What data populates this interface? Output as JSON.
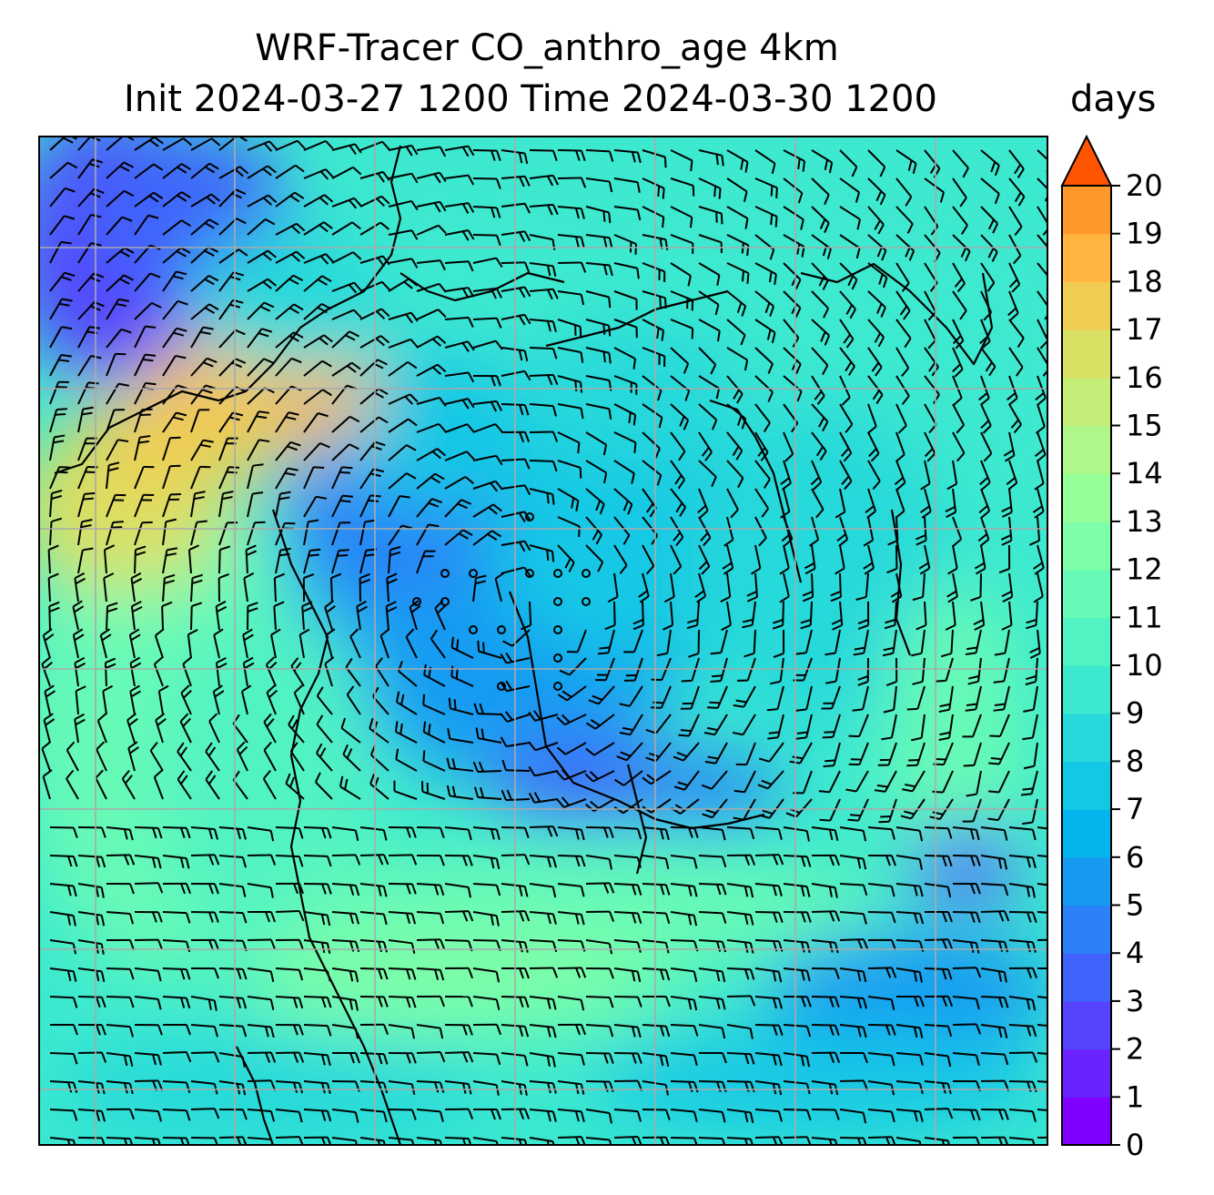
{
  "figure": {
    "title_line1": "WRF-Tracer CO_anthro_age 4km",
    "title_line2": "Init 2024-03-27 1200 Time 2024-03-30 1200",
    "units": "days"
  },
  "colorbar": {
    "ticks": [
      "0",
      "1",
      "2",
      "3",
      "4",
      "5",
      "6",
      "7",
      "8",
      "9",
      "10",
      "11",
      "12",
      "13",
      "14",
      "15",
      "16",
      "17",
      "18",
      "19",
      "20"
    ],
    "levels": [
      0,
      20
    ],
    "extend": "max",
    "colormap": "rainbow",
    "colors": [
      "#7f00ff",
      "#6a22fe",
      "#5544fd",
      "#4064fb",
      "#2c81f8",
      "#179bf2",
      "#04b4ed",
      "#13c8e5",
      "#27d9da",
      "#3ce9cf",
      "#51f3c3",
      "#67fab6",
      "#7efea8",
      "#95fe98",
      "#adf888",
      "#c4ee77",
      "#dae064",
      "#f0cd52",
      "#ffb53f",
      "#ff982b",
      "#ff7816",
      "#ff5400"
    ]
  },
  "map": {
    "field": "CO_anthro_age",
    "wind_barbs": true,
    "gridlines": true,
    "coastlines": true
  }
}
